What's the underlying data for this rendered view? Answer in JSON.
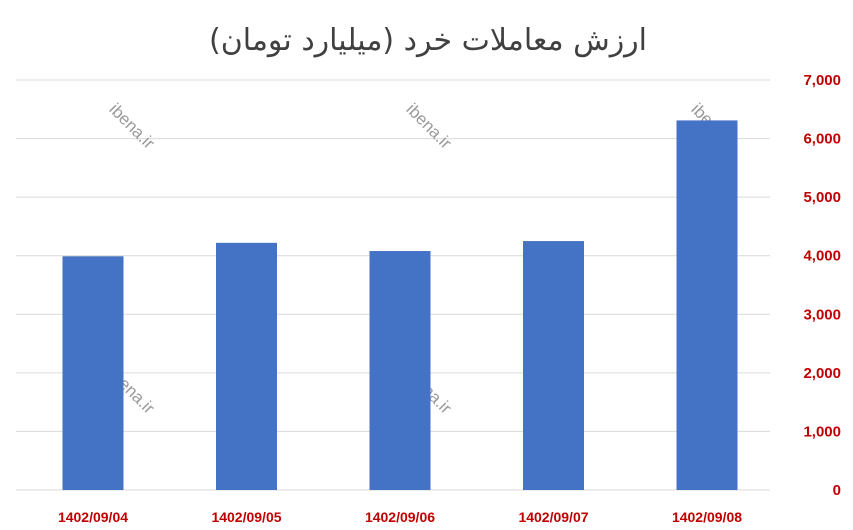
{
  "chart_data": {
    "type": "bar",
    "title": "ارزش معاملات خرد (میلیارد تومان)",
    "categories": [
      "1402/09/04",
      "1402/09/05",
      "1402/09/06",
      "1402/09/07",
      "1402/09/08"
    ],
    "values": [
      3990,
      4220,
      4080,
      4250,
      6310
    ],
    "ylim": [
      0,
      7000
    ],
    "yticks": [
      "0",
      "1,000",
      "2,000",
      "3,000",
      "4,000",
      "5,000",
      "6,000",
      "7,000"
    ],
    "ytick_values": [
      0,
      1000,
      2000,
      3000,
      4000,
      5000,
      6000,
      7000
    ],
    "y_axis_side": "right",
    "grid": true,
    "bar_color": "#4472C4",
    "tick_label_color": "#C00000",
    "gridline_color": "#D9D9D9",
    "watermark": "ibena.ir"
  }
}
